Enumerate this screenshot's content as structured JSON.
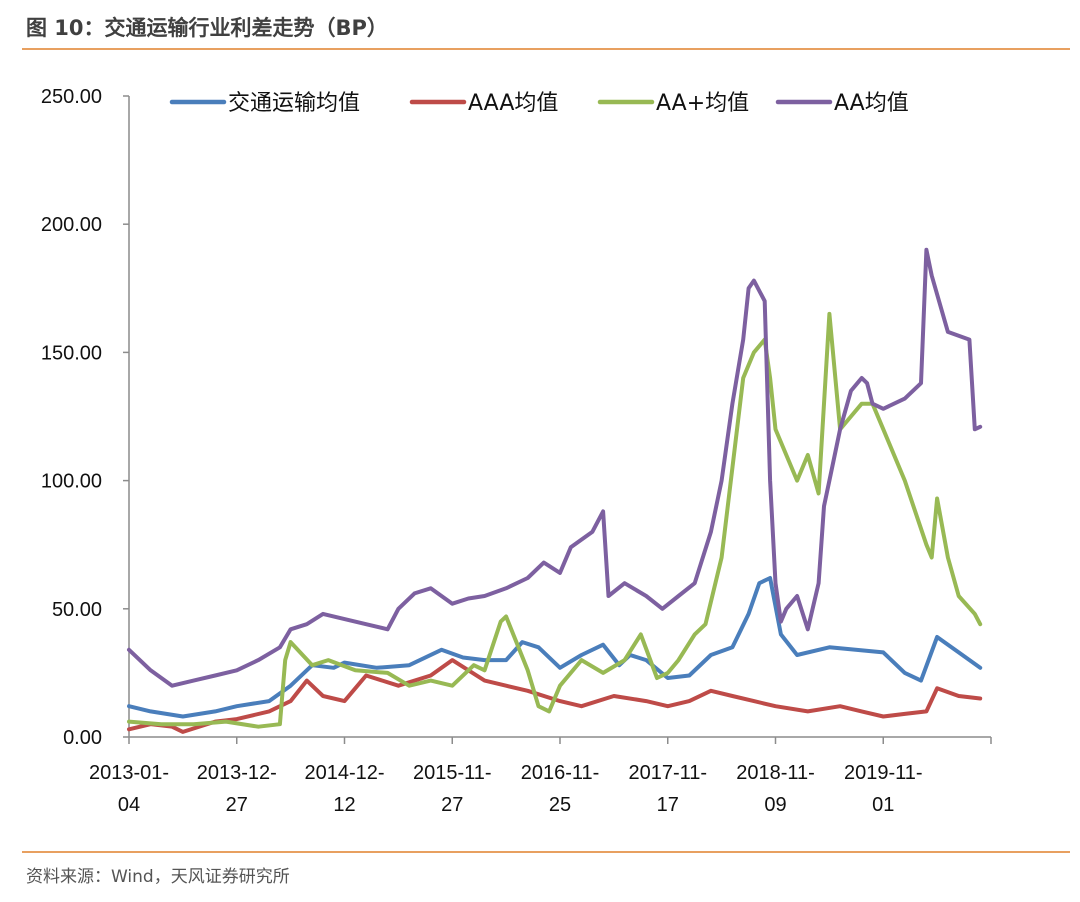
{
  "header": {
    "title": "图 10：交通运输行业利差走势（BP）"
  },
  "footer": {
    "source": "资料来源：Wind，天风证券研究所"
  },
  "chart_data": {
    "type": "line",
    "title": "图 10：交通运输行业利差走势（BP）",
    "xlabel": "",
    "ylabel": "",
    "ylim": [
      0,
      250
    ],
    "ytick_labels": [
      "0.00",
      "50.00",
      "100.00",
      "150.00",
      "200.00",
      "250.00"
    ],
    "xtick_labels": [
      [
        "2013-01-",
        "04"
      ],
      [
        "2013-12-",
        "27"
      ],
      [
        "2014-12-",
        "12"
      ],
      [
        "2015-11-",
        "27"
      ],
      [
        "2016-11-",
        "25"
      ],
      [
        "2017-11-",
        "17"
      ],
      [
        "2018-11-",
        "09"
      ],
      [
        "2019-11-",
        "01"
      ]
    ],
    "x_domain": [
      0,
      8
    ],
    "legend_position": "top",
    "colors": {
      "交通运输均值": "#4a7ebb",
      "AAA均值": "#be4b48",
      "AA+均值": "#98b954",
      "AA均值": "#7d60a0"
    },
    "series": [
      {
        "name": "交通运输均值",
        "x": [
          0,
          0.2,
          0.5,
          0.8,
          1.0,
          1.3,
          1.5,
          1.7,
          1.9,
          2.0,
          2.3,
          2.6,
          2.9,
          3.1,
          3.3,
          3.5,
          3.65,
          3.8,
          4.0,
          4.2,
          4.4,
          4.55,
          4.65,
          4.8,
          5.0,
          5.2,
          5.4,
          5.6,
          5.75,
          5.85,
          5.95,
          6.05,
          6.2,
          6.5,
          7.0,
          7.2,
          7.35,
          7.5,
          7.7,
          7.9
        ],
        "values": [
          12,
          10,
          8,
          10,
          12,
          14,
          20,
          28,
          27,
          29,
          27,
          28,
          34,
          31,
          30,
          30,
          37,
          35,
          27,
          32,
          36,
          28,
          32,
          30,
          23,
          24,
          32,
          35,
          48,
          60,
          62,
          40,
          32,
          35,
          33,
          25,
          22,
          39,
          33,
          27
        ]
      },
      {
        "name": "AAA均值",
        "x": [
          0,
          0.2,
          0.4,
          0.5,
          0.8,
          1.0,
          1.3,
          1.5,
          1.65,
          1.8,
          2.0,
          2.2,
          2.5,
          2.8,
          3.0,
          3.3,
          3.5,
          3.7,
          4.0,
          4.2,
          4.5,
          4.8,
          5.0,
          5.2,
          5.4,
          5.6,
          5.8,
          6.0,
          6.3,
          6.6,
          6.8,
          7.0,
          7.2,
          7.4,
          7.5,
          7.7,
          7.9
        ],
        "values": [
          3,
          5,
          4,
          2,
          6,
          7,
          10,
          14,
          22,
          16,
          14,
          24,
          20,
          24,
          30,
          22,
          20,
          18,
          14,
          12,
          16,
          14,
          12,
          14,
          18,
          16,
          14,
          12,
          10,
          12,
          10,
          8,
          9,
          10,
          19,
          16,
          15
        ]
      },
      {
        "name": "AA+均值",
        "x": [
          0,
          0.3,
          0.6,
          0.9,
          1.2,
          1.4,
          1.45,
          1.5,
          1.7,
          1.85,
          2.1,
          2.4,
          2.6,
          2.8,
          3.0,
          3.2,
          3.3,
          3.45,
          3.5,
          3.7,
          3.8,
          3.9,
          4.0,
          4.2,
          4.4,
          4.6,
          4.75,
          4.9,
          5.0,
          5.1,
          5.25,
          5.35,
          5.5,
          5.6,
          5.7,
          5.8,
          5.9,
          5.95,
          6.0,
          6.05,
          6.1,
          6.2,
          6.3,
          6.4,
          6.5,
          6.6,
          6.7,
          6.8,
          6.9,
          7.0,
          7.2,
          7.4,
          7.45,
          7.5,
          7.6,
          7.7,
          7.85,
          7.9
        ],
        "values": [
          6,
          5,
          5,
          6,
          4,
          5,
          30,
          37,
          28,
          30,
          26,
          25,
          20,
          22,
          20,
          28,
          26,
          45,
          47,
          26,
          12,
          10,
          20,
          30,
          25,
          30,
          40,
          23,
          25,
          30,
          40,
          44,
          70,
          105,
          140,
          150,
          155,
          140,
          120,
          115,
          110,
          100,
          110,
          95,
          165,
          120,
          125,
          130,
          130,
          120,
          100,
          75,
          70,
          93,
          70,
          55,
          48,
          44
        ]
      },
      {
        "name": "AA均值",
        "x": [
          0,
          0.2,
          0.4,
          0.6,
          0.8,
          1.0,
          1.2,
          1.4,
          1.5,
          1.65,
          1.8,
          2.0,
          2.2,
          2.4,
          2.5,
          2.65,
          2.8,
          3.0,
          3.15,
          3.3,
          3.5,
          3.7,
          3.85,
          4.0,
          4.1,
          4.3,
          4.4,
          4.45,
          4.6,
          4.8,
          4.95,
          5.1,
          5.25,
          5.4,
          5.5,
          5.6,
          5.7,
          5.75,
          5.8,
          5.9,
          5.95,
          6.0,
          6.05,
          6.1,
          6.2,
          6.3,
          6.4,
          6.45,
          6.5,
          6.6,
          6.7,
          6.8,
          6.85,
          6.9,
          7.0,
          7.2,
          7.35,
          7.4,
          7.45,
          7.6,
          7.8,
          7.85,
          7.9
        ],
        "values": [
          34,
          26,
          20,
          22,
          24,
          26,
          30,
          35,
          42,
          44,
          48,
          46,
          44,
          42,
          50,
          56,
          58,
          52,
          54,
          55,
          58,
          62,
          68,
          64,
          74,
          80,
          88,
          55,
          60,
          55,
          50,
          55,
          60,
          80,
          100,
          130,
          155,
          175,
          178,
          170,
          100,
          60,
          45,
          50,
          55,
          42,
          60,
          90,
          100,
          120,
          135,
          140,
          138,
          130,
          128,
          132,
          138,
          190,
          180,
          158,
          155,
          120,
          121
        ]
      }
    ]
  }
}
